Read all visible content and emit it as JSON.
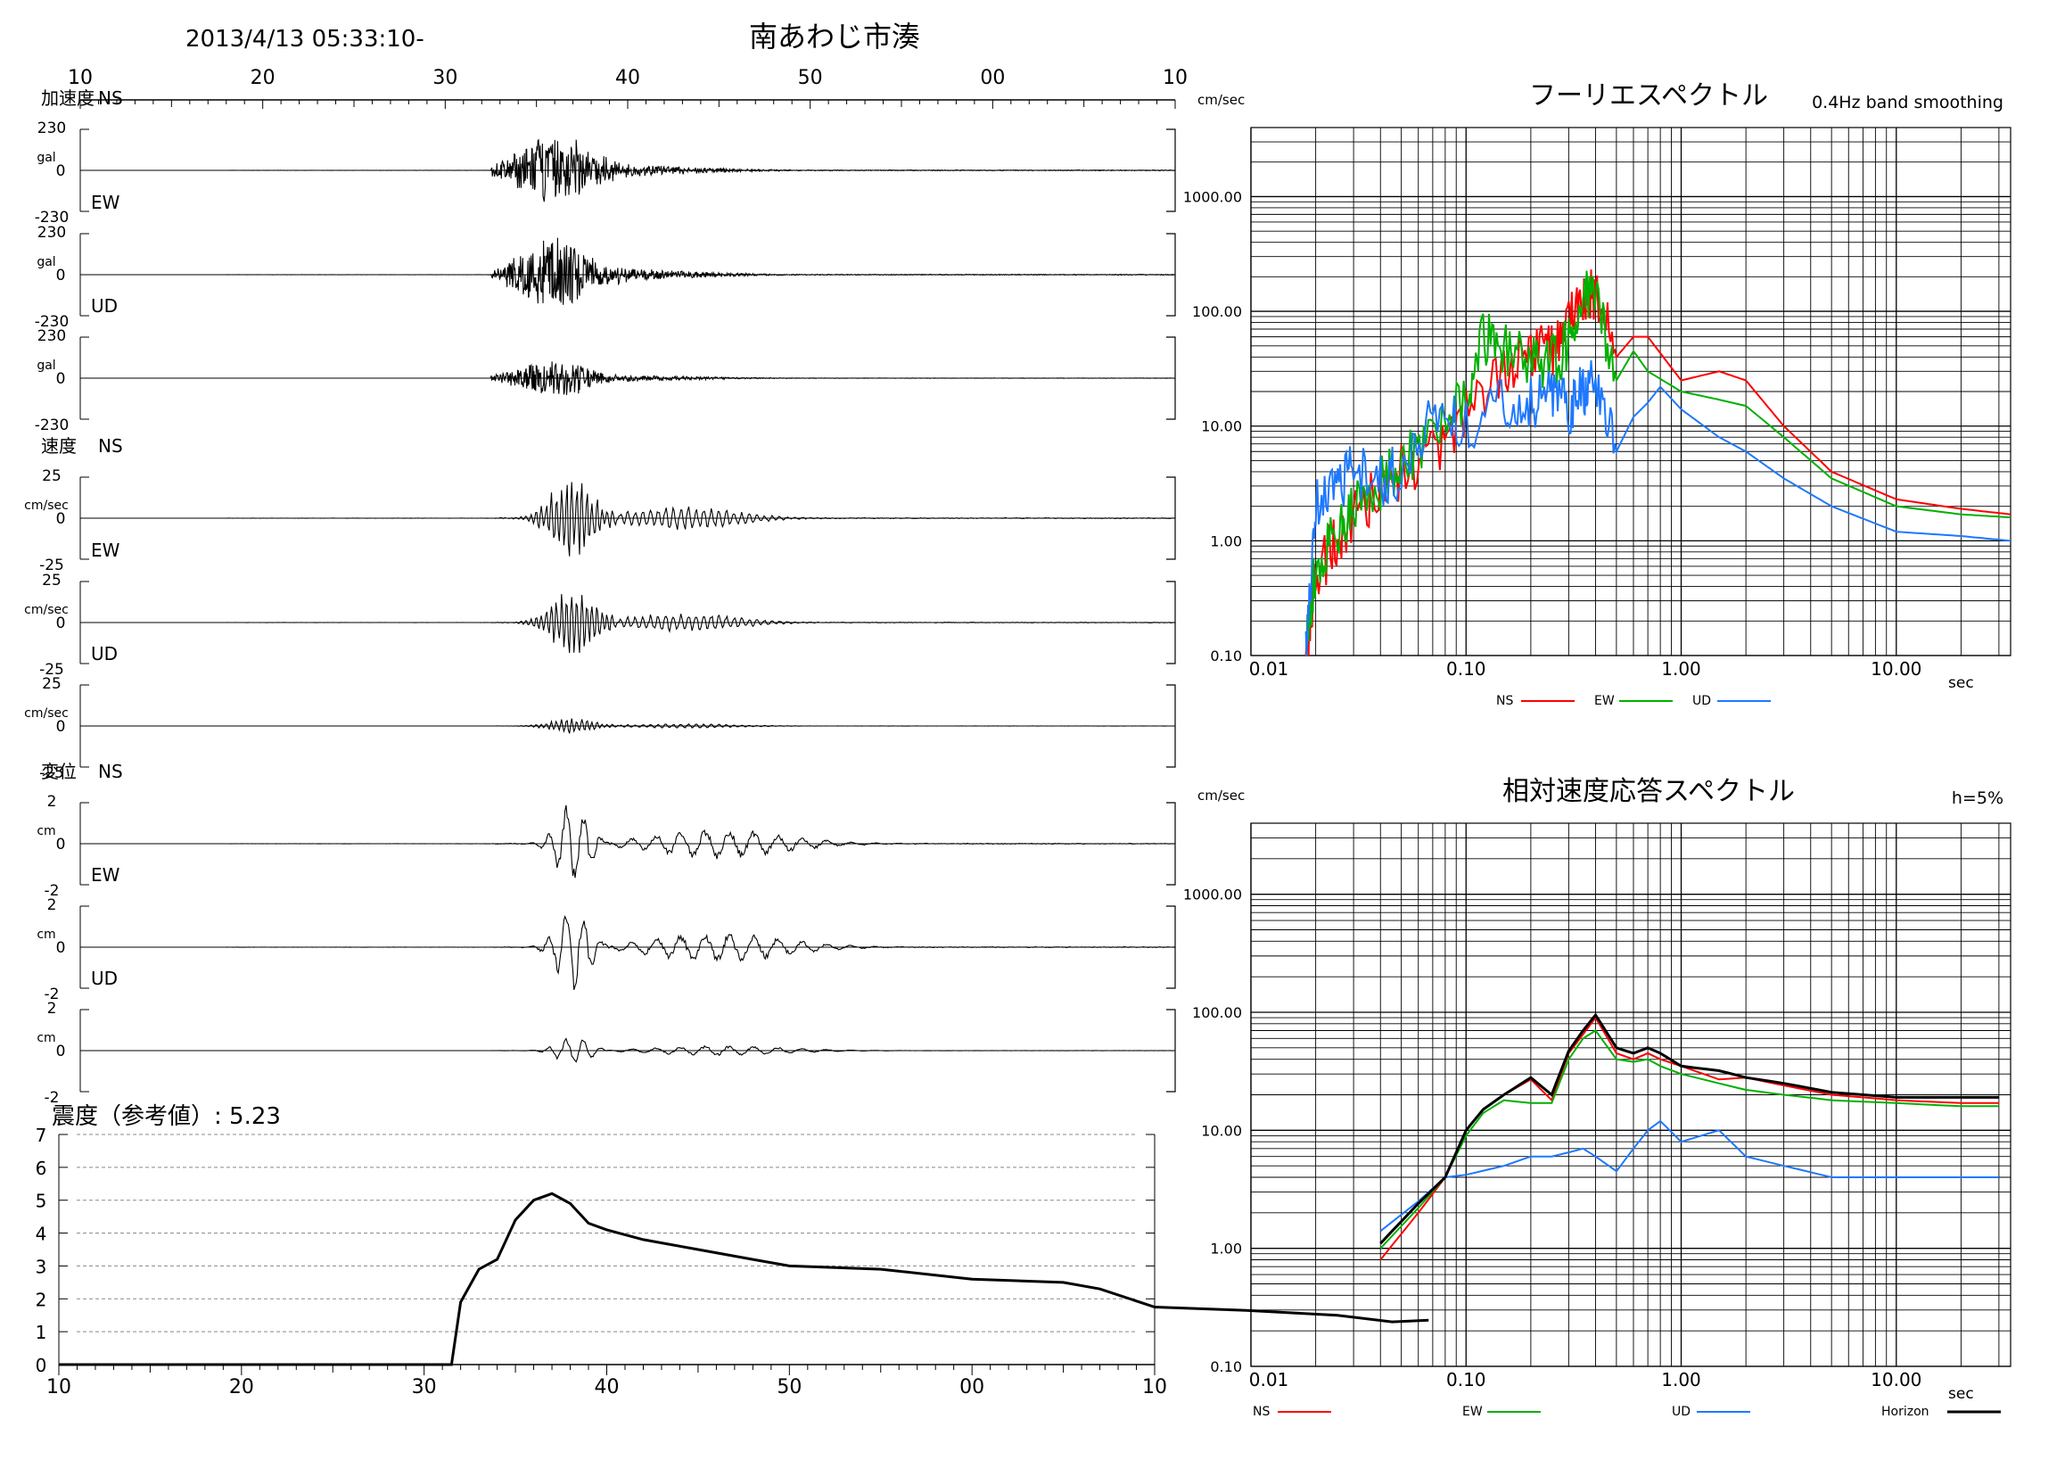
{
  "header": {
    "datetime": "2013/4/13 05:33:10-",
    "station": "南あわじ市湊"
  },
  "colors": {
    "ns": "#ff0000",
    "ew": "#00b000",
    "ud": "#1e78ff",
    "horizon": "#000000",
    "grid": "#000000"
  },
  "chart_data": [
    {
      "type": "line",
      "title": "",
      "panel": "waveform time axis",
      "x_tick_labels": [
        "10",
        "20",
        "30",
        "40",
        "50",
        "00",
        "10"
      ]
    },
    {
      "type": "line",
      "group_label": "加速度",
      "channels": [
        {
          "name": "NS",
          "unit": "gal",
          "ylim": [
            -230,
            230
          ],
          "tick_labels": [
            "230",
            "0",
            "-230"
          ]
        },
        {
          "name": "EW",
          "unit": "gal",
          "ylim": [
            -230,
            230
          ],
          "tick_labels": [
            "230",
            "0",
            "-230"
          ]
        },
        {
          "name": "UD",
          "unit": "gal",
          "ylim": [
            -230,
            230
          ],
          "tick_labels": [
            "230",
            "0",
            "-230"
          ]
        }
      ]
    },
    {
      "type": "line",
      "group_label": "速度",
      "channels": [
        {
          "name": "NS",
          "unit": "cm/sec",
          "ylim": [
            -25,
            25
          ],
          "tick_labels": [
            "25",
            "0",
            "-25"
          ]
        },
        {
          "name": "EW",
          "unit": "cm/sec",
          "ylim": [
            -25,
            25
          ],
          "tick_labels": [
            "25",
            "0",
            "-25"
          ]
        },
        {
          "name": "UD",
          "unit": "cm/sec",
          "ylim": [
            -25,
            25
          ],
          "tick_labels": [
            "25",
            "0",
            "-25"
          ]
        }
      ]
    },
    {
      "type": "line",
      "group_label": "変位",
      "channels": [
        {
          "name": "NS",
          "unit": "cm",
          "ylim": [
            -2,
            2
          ],
          "tick_labels": [
            "2",
            "0",
            "-2"
          ]
        },
        {
          "name": "EW",
          "unit": "cm",
          "ylim": [
            -2,
            2
          ],
          "tick_labels": [
            "2",
            "0",
            "-2"
          ]
        },
        {
          "name": "UD",
          "unit": "cm",
          "ylim": [
            -2,
            2
          ],
          "tick_labels": [
            "2",
            "0",
            "-2"
          ]
        }
      ]
    },
    {
      "type": "line",
      "title": "震度（参考値）: 5.23",
      "ylim": [
        0,
        7
      ],
      "y_tick_labels": [
        "0",
        "1",
        "2",
        "3",
        "4",
        "5",
        "6",
        "7"
      ],
      "x_tick_labels": [
        "10",
        "20",
        "30",
        "40",
        "50",
        "00",
        "10"
      ],
      "series": [
        {
          "name": "",
          "x_seconds": [
            0,
            21.5,
            22,
            23,
            24,
            25,
            26,
            27,
            28,
            29,
            30,
            32,
            35,
            38,
            40,
            45,
            50,
            55,
            57,
            60,
            65,
            70,
            73,
            75
          ],
          "values": [
            0,
            0,
            1.9,
            2.9,
            3.2,
            4.4,
            5.0,
            5.2,
            4.9,
            4.3,
            4.1,
            3.8,
            3.5,
            3.2,
            3.0,
            2.9,
            2.6,
            2.5,
            2.3,
            1.75,
            1.65,
            1.5,
            1.3,
            1.35
          ]
        }
      ]
    },
    {
      "type": "line",
      "title": "フーリエスペクトル",
      "subtitle": "0.4Hz band smoothing",
      "ylabel": "cm/sec",
      "xlabel": "sec",
      "log_x": true,
      "log_y": true,
      "xlim": [
        0.01,
        34
      ],
      "ylim": [
        0.1,
        4000
      ],
      "x_tick_labels": [
        "0.01",
        "0.10",
        "1.00",
        "10.00"
      ],
      "y_tick_labels": [
        "0.10",
        "1.00",
        "10.00",
        "100.00",
        "1000.00"
      ],
      "legend": [
        "NS",
        "EW",
        "UD"
      ],
      "series": [
        {
          "name": "NS",
          "x": [
            0.018,
            0.02,
            0.025,
            0.03,
            0.04,
            0.05,
            0.07,
            0.1,
            0.15,
            0.2,
            0.25,
            0.3,
            0.35,
            0.4,
            0.5,
            0.6,
            0.7,
            1.0,
            1.5,
            2,
            3,
            5,
            10,
            20,
            34
          ],
          "values": [
            0.1,
            0.5,
            1.0,
            1.5,
            3,
            4,
            6,
            12,
            30,
            40,
            45,
            80,
            120,
            150,
            40,
            60,
            60,
            25,
            30,
            25,
            10,
            4,
            2.3,
            1.9,
            1.7
          ]
        },
        {
          "name": "EW",
          "x": [
            0.018,
            0.02,
            0.025,
            0.03,
            0.04,
            0.05,
            0.07,
            0.1,
            0.12,
            0.15,
            0.2,
            0.25,
            0.3,
            0.35,
            0.4,
            0.5,
            0.6,
            0.7,
            1.0,
            1.5,
            2,
            3,
            5,
            10,
            20,
            34
          ],
          "values": [
            0.1,
            0.6,
            1.2,
            2,
            3,
            5,
            8,
            20,
            60,
            45,
            40,
            35,
            50,
            120,
            160,
            25,
            45,
            30,
            20,
            17,
            15,
            8,
            3.5,
            2,
            1.7,
            1.6
          ]
        },
        {
          "name": "UD",
          "x": [
            0.018,
            0.02,
            0.025,
            0.03,
            0.04,
            0.05,
            0.07,
            0.1,
            0.15,
            0.2,
            0.25,
            0.3,
            0.35,
            0.4,
            0.5,
            0.6,
            0.7,
            0.8,
            1.0,
            1.5,
            2,
            3,
            5,
            10,
            20,
            34
          ],
          "values": [
            0.1,
            2,
            3,
            4,
            3.5,
            4,
            15,
            10,
            18,
            15,
            18,
            14,
            20,
            22,
            6,
            12,
            16,
            22,
            14,
            8,
            6,
            3.5,
            2,
            1.2,
            1.1,
            1.0
          ]
        }
      ]
    },
    {
      "type": "line",
      "title": "相対速度応答スペクトル",
      "subtitle": "h=5%",
      "ylabel": "cm/sec",
      "xlabel": "sec",
      "log_x": true,
      "log_y": true,
      "xlim": [
        0.01,
        34
      ],
      "ylim": [
        0.1,
        4000
      ],
      "x_tick_labels": [
        "0.01",
        "0.10",
        "1.00",
        "10.00"
      ],
      "y_tick_labels": [
        "0.10",
        "1.00",
        "10.00",
        "100.00",
        "1000.00"
      ],
      "legend": [
        "NS",
        "EW",
        "UD",
        "Horizon"
      ],
      "series": [
        {
          "name": "NS",
          "x": [
            0.04,
            0.06,
            0.08,
            0.1,
            0.12,
            0.15,
            0.2,
            0.25,
            0.3,
            0.35,
            0.4,
            0.5,
            0.6,
            0.7,
            0.8,
            1.0,
            1.5,
            2,
            3,
            5,
            10,
            20,
            30
          ],
          "values": [
            0.8,
            2,
            4,
            10,
            15,
            20,
            27,
            18,
            45,
            65,
            90,
            45,
            40,
            45,
            40,
            35,
            27,
            28,
            24,
            20,
            18,
            17,
            17
          ]
        },
        {
          "name": "EW",
          "x": [
            0.04,
            0.06,
            0.08,
            0.1,
            0.12,
            0.15,
            0.2,
            0.25,
            0.3,
            0.35,
            0.4,
            0.5,
            0.6,
            0.7,
            0.8,
            1.0,
            1.5,
            2,
            3,
            5,
            10,
            20,
            30
          ],
          "values": [
            1,
            2.2,
            4,
            9,
            14,
            18,
            17,
            17,
            40,
            60,
            70,
            40,
            38,
            40,
            35,
            30,
            25,
            22,
            20,
            18,
            17,
            16,
            16
          ]
        },
        {
          "name": "UD",
          "x": [
            0.04,
            0.06,
            0.08,
            0.1,
            0.15,
            0.2,
            0.25,
            0.3,
            0.35,
            0.4,
            0.5,
            0.6,
            0.7,
            0.8,
            1.0,
            1.5,
            2,
            3,
            5,
            10,
            20,
            30
          ],
          "values": [
            1.4,
            2.5,
            4,
            4.2,
            5,
            6,
            6,
            6.5,
            7,
            6,
            4.5,
            7,
            10,
            12,
            8,
            10,
            6,
            5,
            4,
            4,
            4,
            4
          ]
        },
        {
          "name": "Horizon",
          "x": [
            0.04,
            0.06,
            0.08,
            0.1,
            0.12,
            0.15,
            0.2,
            0.25,
            0.3,
            0.35,
            0.4,
            0.5,
            0.6,
            0.7,
            0.8,
            1.0,
            1.5,
            2,
            3,
            5,
            10,
            20,
            30
          ],
          "values": [
            1.1,
            2.4,
            4,
            10,
            15,
            20,
            28,
            20,
            47,
            70,
            95,
            50,
            45,
            50,
            45,
            35,
            32,
            28,
            25,
            21,
            19,
            19,
            19
          ]
        }
      ]
    }
  ]
}
